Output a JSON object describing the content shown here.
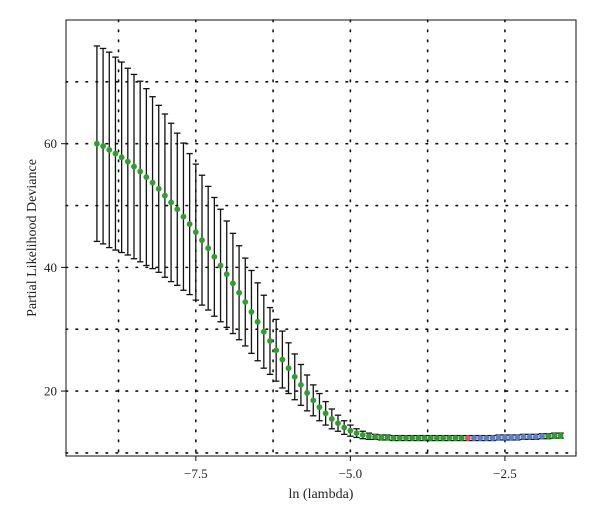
{
  "chart_data": {
    "type": "line",
    "title": "",
    "xlabel": "ln (lambda)",
    "ylabel": "Partial Likelihood Deviance",
    "xlim": [
      -9.6,
      -1.35
    ],
    "ylim": [
      9.5,
      80
    ],
    "x_ticks": [
      -7.5,
      -5.0,
      -2.5
    ],
    "x_tick_labels": [
      "−7.5",
      "−5.0",
      "−2.5"
    ],
    "y_ticks": [
      20,
      40,
      60
    ],
    "y_tick_labels": [
      "20",
      "40",
      "60"
    ],
    "grid": "dotted",
    "x": [
      -9.1,
      -9.0,
      -8.9,
      -8.8,
      -8.7,
      -8.6,
      -8.5,
      -8.4,
      -8.3,
      -8.2,
      -8.1,
      -8.0,
      -7.9,
      -7.8,
      -7.7,
      -7.6,
      -7.5,
      -7.4,
      -7.3,
      -7.2,
      -7.1,
      -7.0,
      -6.9,
      -6.8,
      -6.7,
      -6.6,
      -6.5,
      -6.4,
      -6.3,
      -6.2,
      -6.1,
      -6.0,
      -5.9,
      -5.8,
      -5.7,
      -5.6,
      -5.5,
      -5.4,
      -5.3,
      -5.2,
      -5.1,
      -5.0,
      -4.9,
      -4.8,
      -4.7,
      -4.6,
      -4.5,
      -4.4,
      -4.3,
      -4.2,
      -4.1,
      -4.0,
      -3.9,
      -3.8,
      -3.7,
      -3.6,
      -3.5,
      -3.4,
      -3.3,
      -3.2,
      -3.1,
      -3.0,
      -2.9,
      -2.8,
      -2.7,
      -2.6,
      -2.5,
      -2.4,
      -2.3,
      -2.2,
      -2.1,
      -2.0,
      -1.9,
      -1.8,
      -1.7,
      -1.6
    ],
    "series": [
      {
        "y": [
          60.0,
          59.6,
          59.0,
          58.4,
          57.8,
          57.1,
          56.3,
          55.5,
          54.6,
          53.7,
          52.7,
          51.6,
          50.5,
          49.4,
          48.2,
          47.0,
          45.7,
          44.4,
          43.1,
          41.7,
          40.3,
          38.9,
          37.4,
          35.9,
          34.4,
          32.8,
          31.2,
          29.6,
          28.1,
          26.6,
          25.1,
          23.7,
          22.3,
          21.0,
          19.7,
          18.5,
          17.4,
          16.4,
          15.5,
          14.8,
          14.1,
          13.6,
          13.2,
          12.9,
          12.7,
          12.6,
          12.5,
          12.5,
          12.4,
          12.4,
          12.4,
          12.4,
          12.4,
          12.4,
          12.4,
          12.4,
          12.4,
          12.4,
          12.4,
          12.4,
          12.4,
          12.4,
          12.4,
          12.4,
          12.4,
          12.5,
          12.5,
          12.5,
          12.5,
          12.6,
          12.6,
          12.6,
          12.7,
          12.7,
          12.8,
          12.8
        ],
        "err_upper": [
          75.8,
          75.4,
          74.8,
          74.0,
          73.2,
          72.2,
          71.2,
          70.1,
          68.9,
          67.6,
          66.2,
          64.8,
          63.3,
          61.7,
          60.1,
          58.4,
          56.7,
          54.9,
          53.1,
          51.3,
          49.4,
          47.5,
          45.5,
          43.5,
          41.5,
          39.5,
          37.5,
          35.5,
          33.5,
          31.6,
          29.7,
          27.8,
          26.0,
          24.3,
          22.6,
          21.0,
          19.6,
          18.3,
          17.1,
          16.1,
          15.2,
          14.5,
          13.9,
          13.5,
          13.2,
          13.0,
          12.9,
          12.9,
          12.8,
          12.8,
          12.8,
          12.8,
          12.8,
          12.8,
          12.8,
          12.8,
          12.8,
          12.8,
          12.8,
          12.8,
          12.8,
          12.8,
          12.8,
          12.8,
          12.8,
          12.9,
          12.9,
          12.9,
          12.9,
          13.0,
          13.0,
          13.0,
          13.1,
          13.1,
          13.2,
          13.2
        ],
        "err_lower": [
          44.2,
          43.8,
          43.2,
          42.8,
          42.4,
          42.0,
          41.4,
          40.9,
          40.3,
          39.8,
          39.2,
          38.4,
          37.7,
          37.1,
          36.3,
          35.6,
          34.7,
          33.9,
          33.1,
          32.1,
          31.2,
          30.3,
          29.3,
          28.3,
          27.3,
          26.1,
          24.9,
          23.7,
          22.7,
          21.6,
          20.5,
          19.6,
          18.6,
          17.7,
          16.8,
          16.0,
          15.2,
          14.5,
          13.9,
          13.5,
          13.0,
          12.7,
          12.5,
          12.3,
          12.2,
          12.2,
          12.1,
          12.1,
          12.0,
          12.0,
          12.0,
          12.0,
          12.0,
          12.0,
          12.0,
          12.0,
          12.0,
          12.0,
          12.0,
          12.0,
          12.0,
          12.0,
          12.0,
          12.0,
          12.0,
          12.1,
          12.1,
          12.1,
          12.1,
          12.2,
          12.2,
          12.2,
          12.3,
          12.3,
          12.4,
          12.4
        ]
      }
    ],
    "point_colors": {
      "default": "#2ca02c",
      "highlight_min": "#e05a5a",
      "range_blue": "#5b7fd0"
    },
    "highlight_min_x": -3.1,
    "blue_range_x": [
      -3.0,
      -1.9
    ],
    "colors": {
      "errorbar": "#111111",
      "grid": "#111111",
      "axis": "#111111"
    }
  }
}
